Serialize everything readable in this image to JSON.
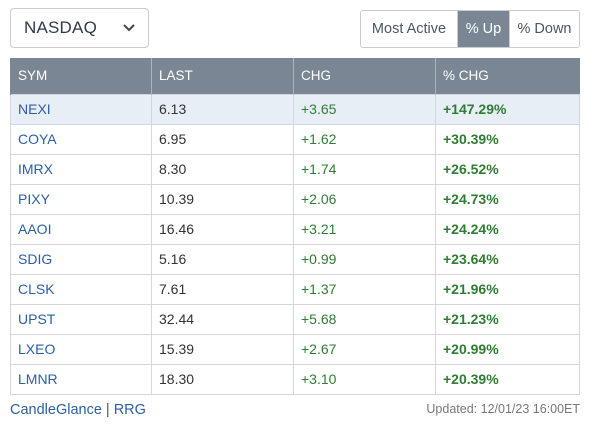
{
  "exchange": {
    "selected": "NASDAQ"
  },
  "filters": [
    {
      "label": "Most Active",
      "active": false
    },
    {
      "label": "% Up",
      "active": true
    },
    {
      "label": "% Down",
      "active": false
    }
  ],
  "table": {
    "headers": [
      "SYM",
      "LAST",
      "CHG",
      "% CHG"
    ],
    "rows": [
      {
        "sym": "NEXI",
        "last": "6.13",
        "chg": "+3.65",
        "pchg": "+147.29%"
      },
      {
        "sym": "COYA",
        "last": "6.95",
        "chg": "+1.62",
        "pchg": "+30.39%"
      },
      {
        "sym": "IMRX",
        "last": "8.30",
        "chg": "+1.74",
        "pchg": "+26.52%"
      },
      {
        "sym": "PIXY",
        "last": "10.39",
        "chg": "+2.06",
        "pchg": "+24.73%"
      },
      {
        "sym": "AAOI",
        "last": "16.46",
        "chg": "+3.21",
        "pchg": "+24.24%"
      },
      {
        "sym": "SDIG",
        "last": "5.16",
        "chg": "+0.99",
        "pchg": "+23.64%"
      },
      {
        "sym": "CLSK",
        "last": "7.61",
        "chg": "+1.37",
        "pchg": "+21.96%"
      },
      {
        "sym": "UPST",
        "last": "32.44",
        "chg": "+5.68",
        "pchg": "+21.23%"
      },
      {
        "sym": "LXEO",
        "last": "15.39",
        "chg": "+2.67",
        "pchg": "+20.99%"
      },
      {
        "sym": "LMNR",
        "last": "18.30",
        "chg": "+3.10",
        "pchg": "+20.39%"
      }
    ]
  },
  "footer": {
    "link1": "CandleGlance",
    "separator": "|",
    "link2": "RRG",
    "updated": "Updated: 12/01/23 16:00ET"
  },
  "colors": {
    "header_bg": "#7b8694",
    "symbol_link": "#2b5fa4",
    "positive": "#2e7d32",
    "highlight_row": "#e8eef6"
  },
  "icons": {
    "dropdown": "chevron-down-icon"
  }
}
